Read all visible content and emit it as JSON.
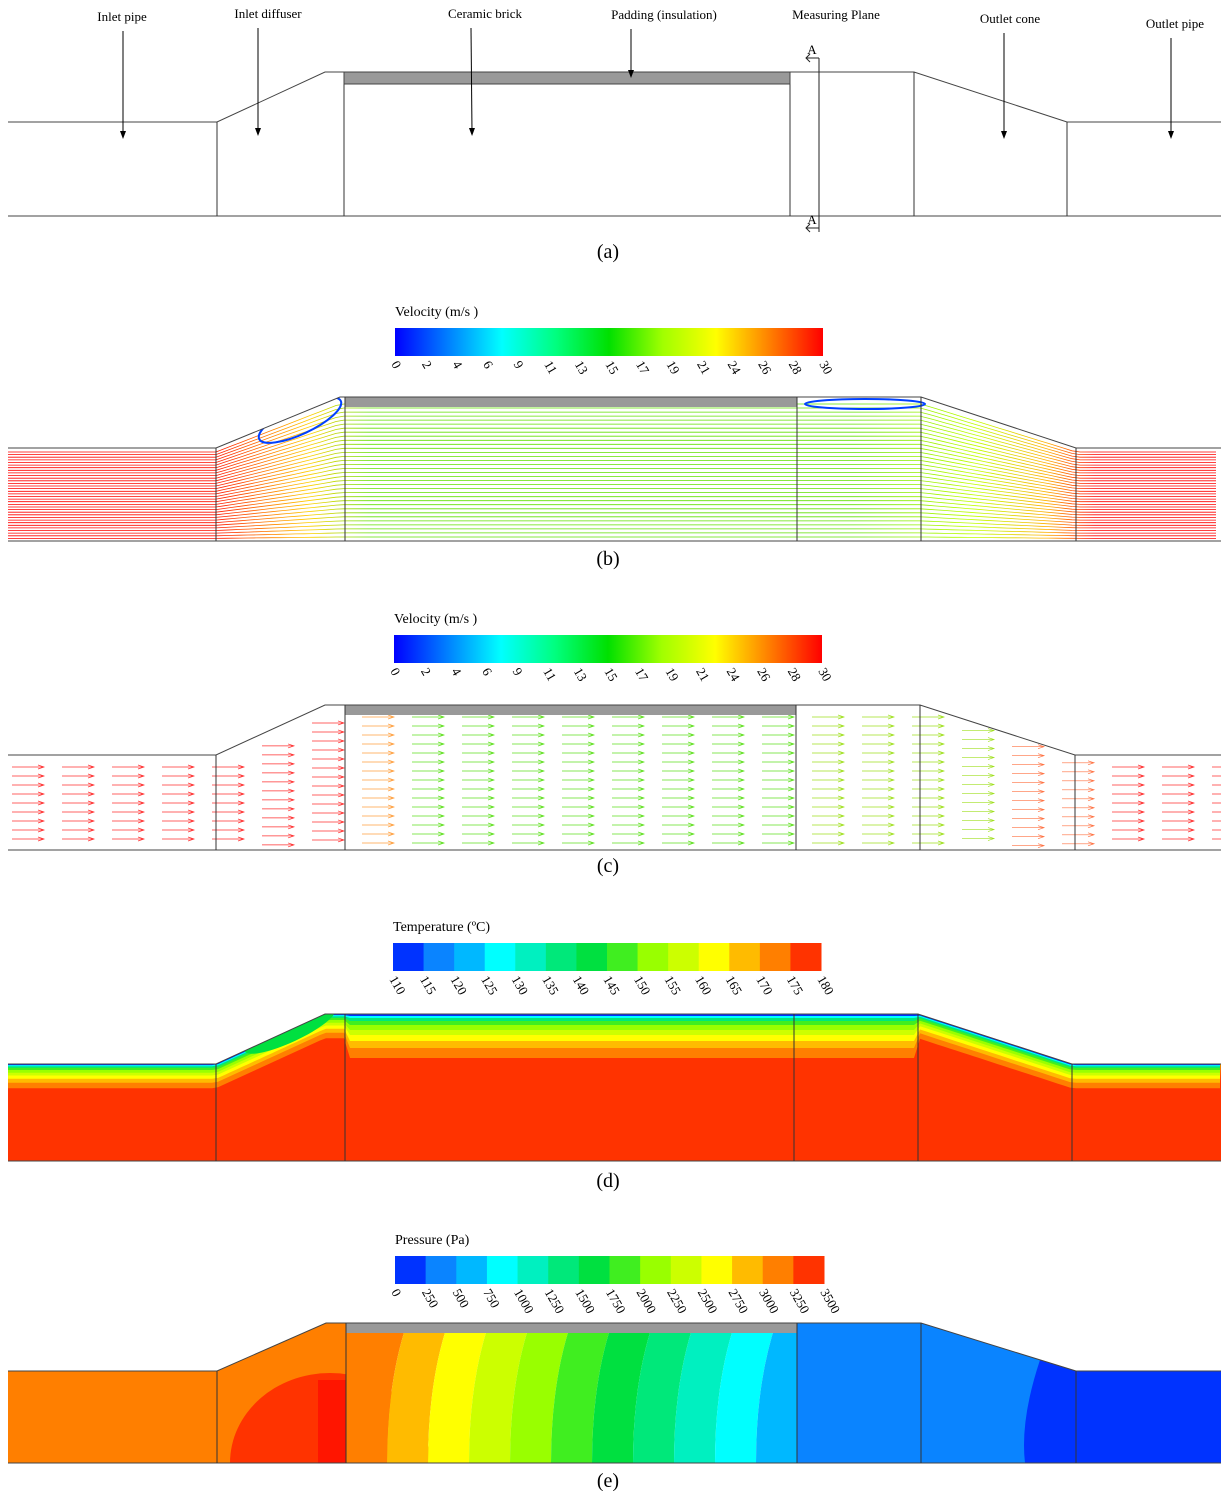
{
  "panel_a": {
    "labels": [
      "Inlet pipe",
      "Inlet diffuser",
      "Ceramic brick",
      "Padding (insulation)",
      "Measuring Plane",
      "Outlet cone",
      "Outlet pipe"
    ],
    "section_labels": [
      "A",
      "A"
    ],
    "caption": "(a)"
  },
  "panel_b": {
    "colorbar": {
      "title": "Velocity (m/s )",
      "ticks": [
        0,
        2,
        4,
        6,
        9,
        11,
        13,
        15,
        17,
        19,
        21,
        24,
        26,
        28,
        30
      ],
      "colors": [
        "#0000ff",
        "#0080ff",
        "#00ffff",
        "#00ff80",
        "#00e000",
        "#a0ff00",
        "#ffff00",
        "#ff8000",
        "#ff0000"
      ]
    },
    "caption": "(b)"
  },
  "panel_c": {
    "colorbar": {
      "title": "Velocity (m/s )",
      "ticks": [
        0,
        2,
        4,
        6,
        9,
        11,
        13,
        15,
        17,
        19,
        21,
        24,
        26,
        28,
        30
      ],
      "colors": [
        "#0000ff",
        "#0080ff",
        "#00ffff",
        "#00ff80",
        "#00e000",
        "#a0ff00",
        "#ffff00",
        "#ff8000",
        "#ff0000"
      ]
    },
    "caption": "(c)"
  },
  "panel_d": {
    "colorbar": {
      "title": "Temperature (ºC)",
      "ticks": [
        110,
        115,
        120,
        125,
        130,
        135,
        140,
        145,
        150,
        155,
        160,
        165,
        170,
        175,
        180
      ],
      "colors": [
        "#0033ff",
        "#0a84ff",
        "#00b8ff",
        "#00ffff",
        "#00f0c0",
        "#00e87a",
        "#00e040",
        "#40ee20",
        "#99ff00",
        "#ccff00",
        "#ffff00",
        "#ffbb00",
        "#ff7f00",
        "#ff3300"
      ]
    },
    "caption": "(d)"
  },
  "panel_e": {
    "colorbar": {
      "title": "Pressure (Pa)",
      "ticks": [
        0,
        250,
        500,
        750,
        1000,
        1250,
        1500,
        1750,
        2000,
        2250,
        2500,
        2750,
        3000,
        3250,
        3500
      ],
      "colors": [
        "#0033ff",
        "#0a84ff",
        "#00b8ff",
        "#00ffff",
        "#00f0c0",
        "#00e87a",
        "#00e040",
        "#40ee20",
        "#99ff00",
        "#ccff00",
        "#ffff00",
        "#ffbb00",
        "#ff7f00",
        "#ff3300"
      ]
    },
    "caption": "(e)"
  }
}
